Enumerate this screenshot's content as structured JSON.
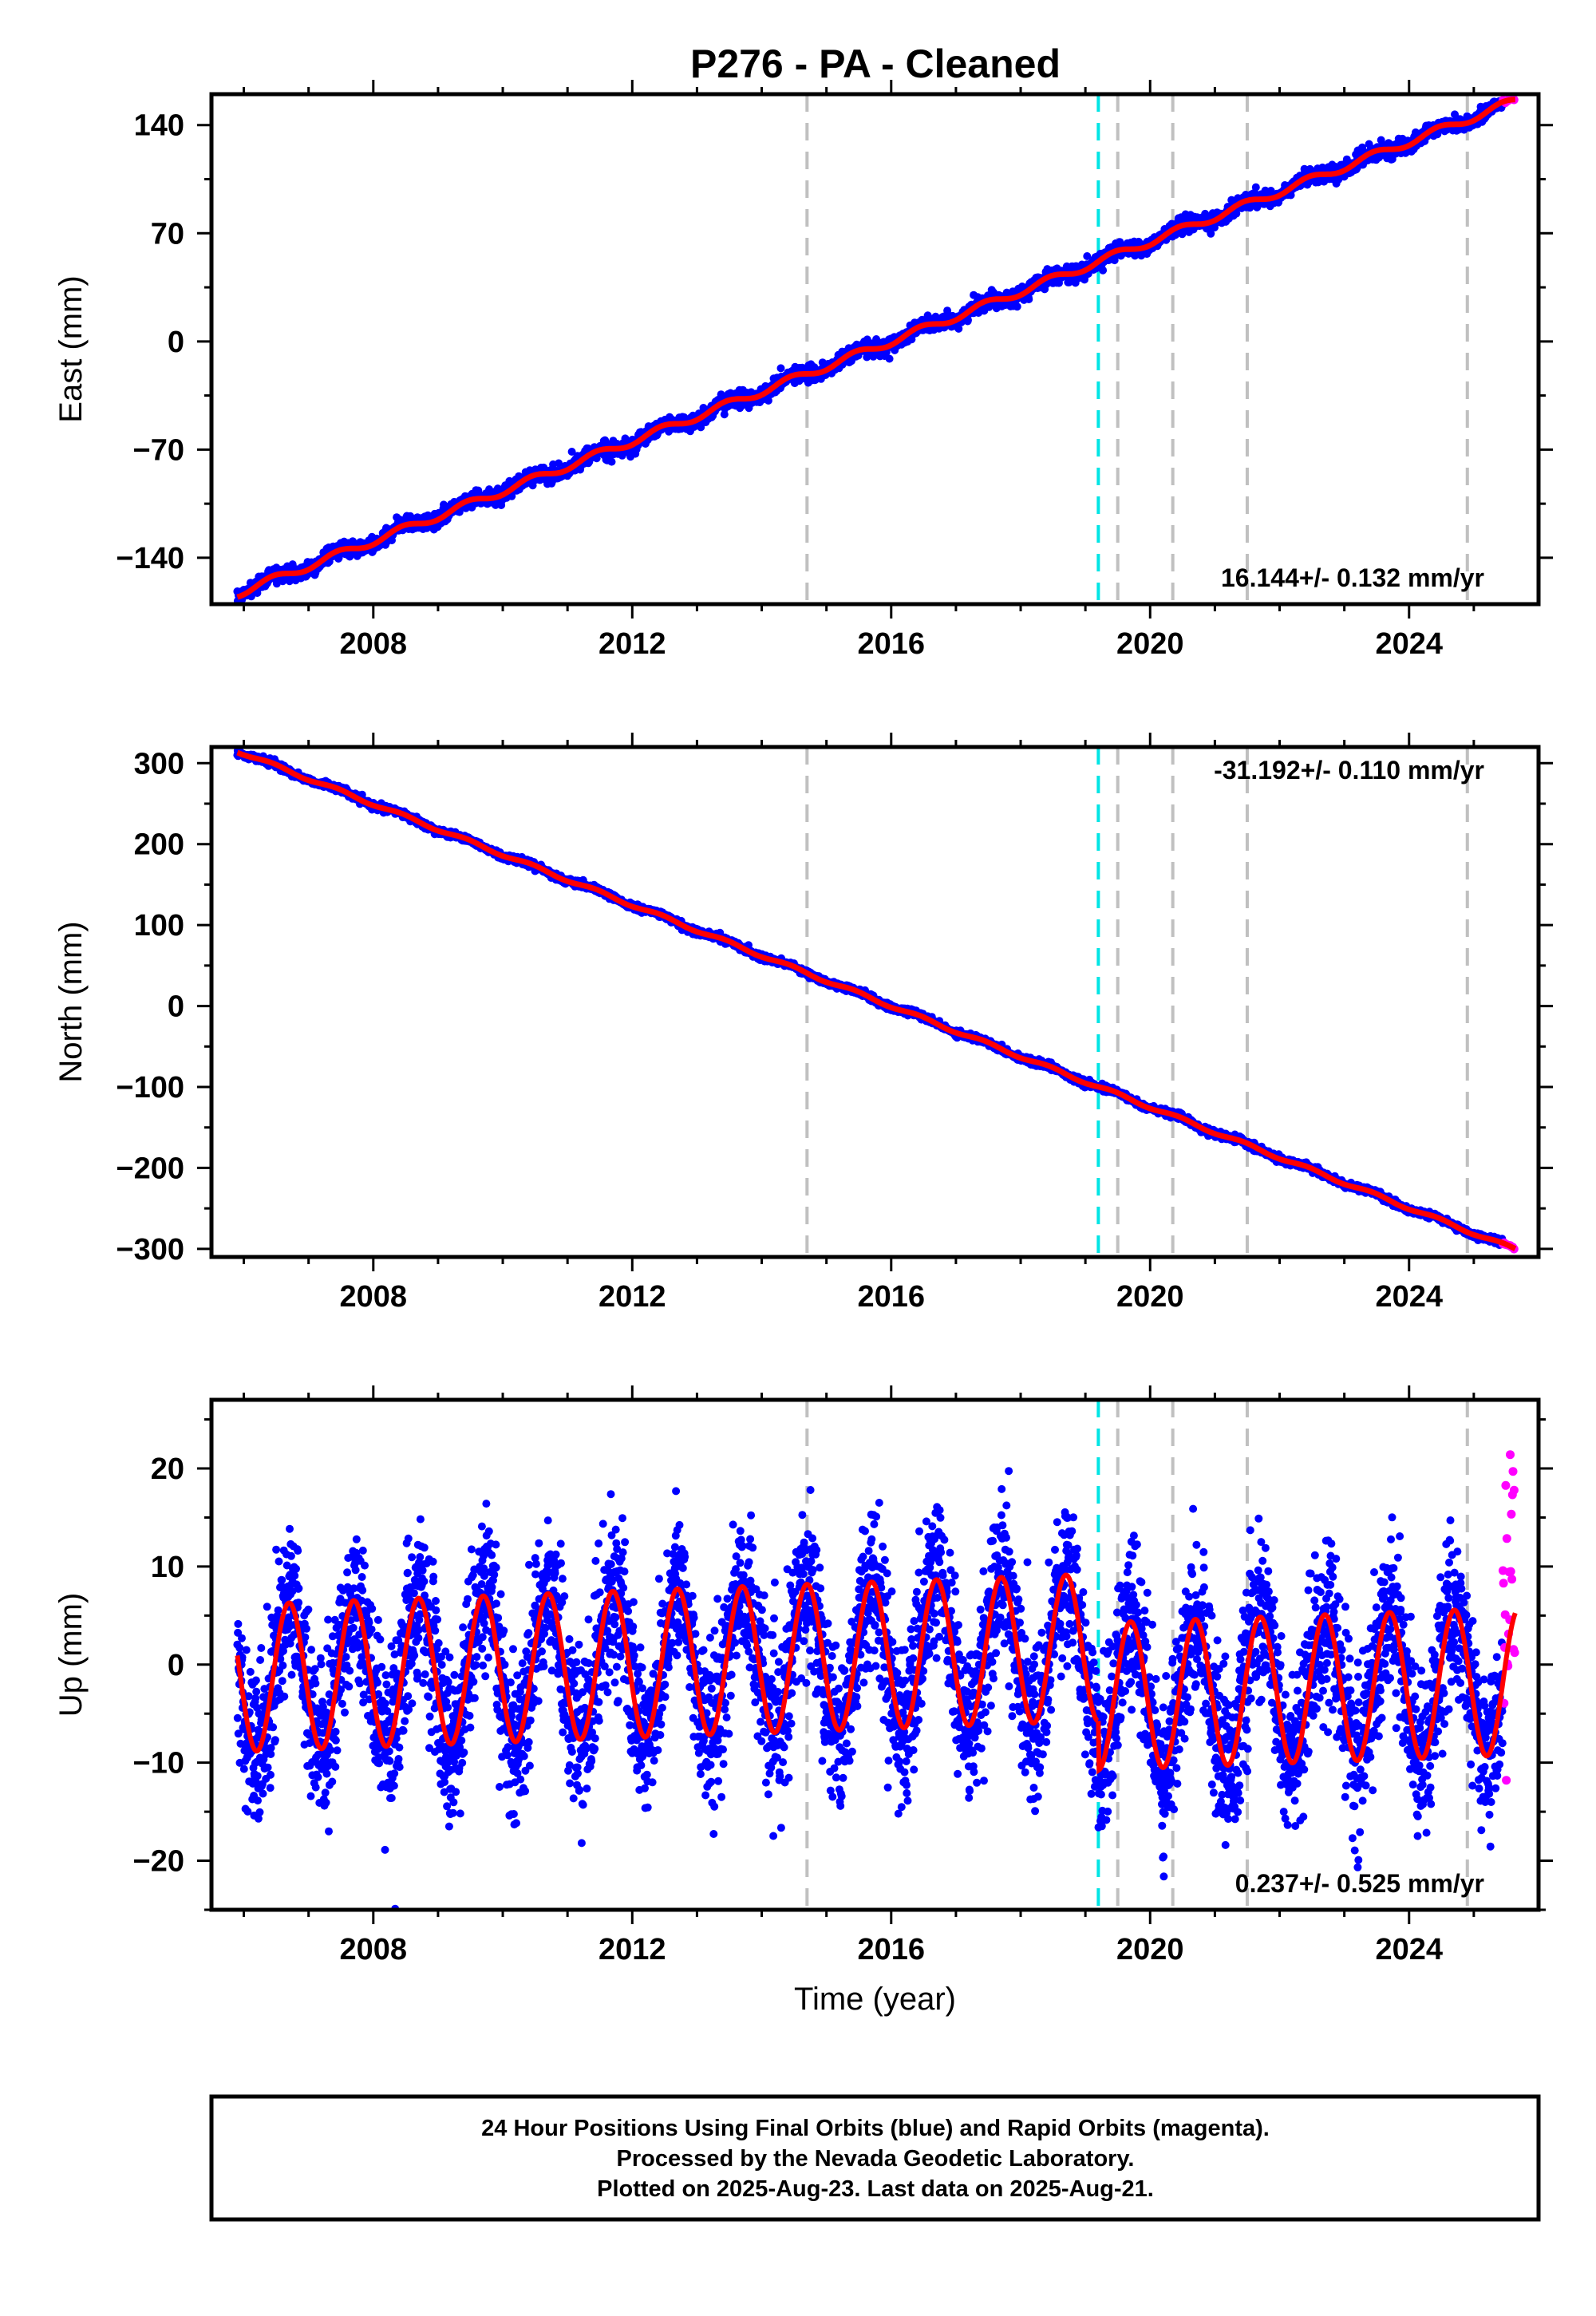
{
  "title": "P276  - PA - Cleaned",
  "colors": {
    "final_orbits": "#0000ff",
    "rapid_orbits": "#ff00ff",
    "model_fit": "#ff0000",
    "event_line": "#c0c0c0",
    "antenna_change_line": "#00e5e5"
  },
  "chart_data": [
    {
      "name": "east",
      "type": "scatter",
      "ylabel": "East (mm)",
      "xlabel": "",
      "xlim": [
        2005.5,
        2026.0
      ],
      "ylim": [
        -170,
        160
      ],
      "xticks": [
        2008,
        2012,
        2016,
        2020,
        2024
      ],
      "yticks": [
        140,
        70,
        0,
        -70,
        -140
      ],
      "velocity_label": "16.144+/- 0.132 mm/yr",
      "velocity_label_position": "bottom-right",
      "velocity": 16.144,
      "value_at_2016": 0,
      "seasonal_amplitude": 2.5,
      "noise": 2.5,
      "data_span": [
        2005.9,
        2025.64
      ],
      "rapid_span": [
        2025.45,
        2025.64
      ],
      "grid": false
    },
    {
      "name": "north",
      "type": "scatter",
      "ylabel": "North (mm)",
      "xlabel": "",
      "xlim": [
        2005.5,
        2026.0
      ],
      "ylim": [
        -310,
        320
      ],
      "xticks": [
        2008,
        2012,
        2016,
        2020,
        2024
      ],
      "yticks": [
        300,
        200,
        100,
        0,
        -100,
        -200,
        -300
      ],
      "velocity_label": "-31.192+/- 0.110 mm/yr",
      "velocity_label_position": "top-right",
      "velocity": -31.192,
      "value_at_2016": 0,
      "seasonal_amplitude": 2.0,
      "noise": 2.0,
      "data_span": [
        2005.9,
        2025.64
      ],
      "rapid_span": [
        2025.45,
        2025.64
      ],
      "grid": false
    },
    {
      "name": "up",
      "type": "scatter",
      "ylabel": "Up (mm)",
      "xlabel": "Time (year)",
      "xlim": [
        2005.5,
        2026.0
      ],
      "ylim": [
        -25,
        27
      ],
      "xticks": [
        2008,
        2012,
        2016,
        2020,
        2024
      ],
      "yticks": [
        20,
        10,
        0,
        -10,
        -20
      ],
      "velocity_label": "0.237+/- 0.525 mm/yr",
      "velocity_label_position": "bottom-right",
      "velocity": 0.237,
      "seasonal_amplitude": 7.5,
      "noise": 4.0,
      "offset_at_antenna_change": -5,
      "data_span": [
        2005.9,
        2025.64
      ],
      "rapid_span": [
        2025.45,
        2025.64
      ],
      "grid": false
    }
  ],
  "event_lines": {
    "gray": [
      2014.7,
      2019.5,
      2020.35,
      2021.5,
      2024.9
    ],
    "cyan": [
      2019.2
    ]
  },
  "footer": {
    "line1": "24 Hour Positions Using Final Orbits (blue) and Rapid Orbits (magenta).",
    "line2": "Processed by the Nevada Geodetic Laboratory.",
    "line3": "Plotted on 2025-Aug-23. Last data on 2025-Aug-21."
  }
}
